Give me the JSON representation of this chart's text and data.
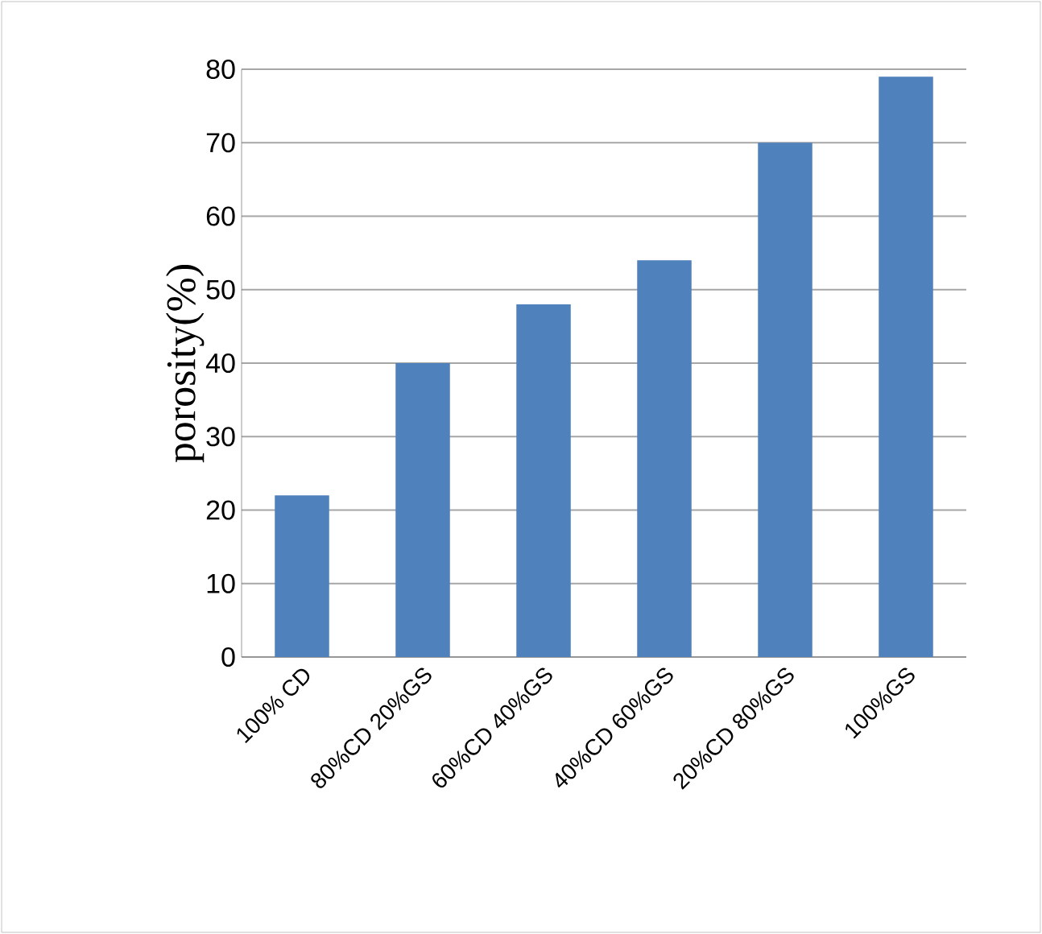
{
  "chart_data": {
    "type": "bar",
    "ylabel": "porosity(%)",
    "categories": [
      "100% CD",
      "80%CD 20%GS",
      "60%CD 40%GS",
      "40%CD 60%GS",
      "20%CD 80%GS",
      "100%GS"
    ],
    "values": [
      22,
      40,
      48,
      54,
      70,
      79
    ],
    "color": "#4f81bd",
    "ylim": [
      0,
      80
    ],
    "yticks": [
      0,
      10,
      20,
      30,
      40,
      50,
      60,
      70,
      80
    ],
    "grid": "y"
  }
}
